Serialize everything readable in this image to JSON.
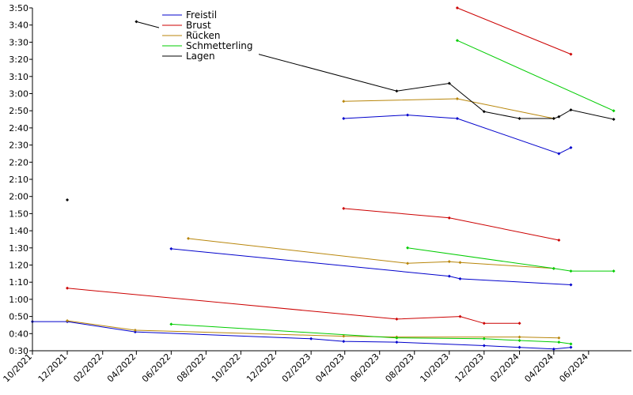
{
  "chart_data": {
    "type": "line",
    "title": "",
    "xlabel": "",
    "ylabel": "",
    "x_range": [
      "2021-10-01",
      "2024-08-15"
    ],
    "y_range_seconds": [
      30,
      230
    ],
    "y_ticks": [
      "0:30",
      "0:40",
      "0:50",
      "1:00",
      "1:10",
      "1:20",
      "1:30",
      "1:40",
      "1:50",
      "2:00",
      "2:10",
      "2:20",
      "2:30",
      "2:40",
      "2:50",
      "3:00",
      "3:10",
      "3:20",
      "3:30",
      "3:40",
      "3:50"
    ],
    "x_ticks": [
      {
        "date": "2021-10-01",
        "label": "10/2021"
      },
      {
        "date": "2021-12-01",
        "label": "12/2021"
      },
      {
        "date": "2022-02-01",
        "label": "02/2022"
      },
      {
        "date": "2022-04-01",
        "label": "04/2022"
      },
      {
        "date": "2022-06-01",
        "label": "06/2022"
      },
      {
        "date": "2022-08-01",
        "label": "08/2022"
      },
      {
        "date": "2022-10-01",
        "label": "10/2022"
      },
      {
        "date": "2022-12-01",
        "label": "12/2022"
      },
      {
        "date": "2023-02-01",
        "label": "02/2023"
      },
      {
        "date": "2023-04-01",
        "label": "04/2023"
      },
      {
        "date": "2023-06-01",
        "label": "06/2023"
      },
      {
        "date": "2023-08-01",
        "label": "08/2023"
      },
      {
        "date": "2023-10-01",
        "label": "10/2023"
      },
      {
        "date": "2023-12-01",
        "label": "12/2023"
      },
      {
        "date": "2024-02-01",
        "label": "02/2024"
      },
      {
        "date": "2024-04-01",
        "label": "04/2024"
      },
      {
        "date": "2024-06-01",
        "label": "06/2024"
      }
    ],
    "grid": false,
    "legend_position": "top-left",
    "series": [
      {
        "name": "Freistil",
        "color": "#0000cc",
        "lines": [
          [
            [
              "2021-10-01",
              "0:47"
            ],
            [
              "2021-12-01",
              "0:47"
            ],
            [
              "2022-03-30",
              "0:41"
            ],
            [
              "2023-02-01",
              "0:37"
            ],
            [
              "2023-03-30",
              "0:35.5"
            ],
            [
              "2023-07-01",
              "0:35"
            ],
            [
              "2023-12-01",
              "0:33"
            ],
            [
              "2024-02-01",
              "0:32"
            ],
            [
              "2024-04-01",
              "0:31"
            ],
            [
              "2024-05-01",
              "0:32"
            ]
          ],
          [
            [
              "2022-06-01",
              "1:29.5"
            ],
            [
              "2023-10-01",
              "1:13.5"
            ],
            [
              "2023-10-20",
              "1:12"
            ],
            [
              "2024-05-01",
              "1:08.5"
            ]
          ],
          [
            [
              "2023-03-30",
              "2:45.5"
            ],
            [
              "2023-07-20",
              "2:47.5"
            ],
            [
              "2023-10-15",
              "2:45.5"
            ],
            [
              "2024-04-10",
              "2:25"
            ],
            [
              "2024-05-01",
              "2:28.5"
            ]
          ]
        ]
      },
      {
        "name": "Brust",
        "color": "#cc0000",
        "lines": [
          [
            [
              "2021-12-01",
              "1:06.5"
            ],
            [
              "2023-07-01",
              "0:48.5"
            ],
            [
              "2023-10-20",
              "0:50"
            ],
            [
              "2023-12-01",
              "0:46"
            ],
            [
              "2024-02-01",
              "0:46"
            ]
          ],
          [
            [
              "2023-03-30",
              "1:53"
            ],
            [
              "2023-10-01",
              "1:47.5"
            ],
            [
              "2024-04-10",
              "1:34.5"
            ]
          ],
          [
            [
              "2023-10-15",
              "3:50"
            ],
            [
              "2024-05-01",
              "3:23"
            ]
          ]
        ]
      },
      {
        "name": "Rücken",
        "color": "#b8860b",
        "lines": [
          [
            [
              "2021-12-01",
              "0:47.5"
            ],
            [
              "2022-03-30",
              "0:42"
            ],
            [
              "2023-03-30",
              "0:38.5"
            ],
            [
              "2023-07-01",
              "0:38"
            ],
            [
              "2024-02-01",
              "0:38"
            ],
            [
              "2024-04-10",
              "0:37.5"
            ]
          ],
          [
            [
              "2022-07-01",
              "1:35.5"
            ],
            [
              "2023-07-20",
              "1:21"
            ],
            [
              "2023-10-01",
              "1:22"
            ],
            [
              "2023-10-20",
              "1:21.5"
            ],
            [
              "2024-04-01",
              "1:18"
            ]
          ],
          [
            [
              "2023-03-30",
              "2:55.5"
            ],
            [
              "2023-10-15",
              "2:57"
            ],
            [
              "2024-04-01",
              "2:45.5"
            ]
          ]
        ]
      },
      {
        "name": "Schmetterling",
        "color": "#00cc00",
        "lines": [
          [
            [
              "2022-06-01",
              "0:45.5"
            ],
            [
              "2023-07-01",
              "0:37.5"
            ],
            [
              "2023-12-01",
              "0:37"
            ],
            [
              "2024-02-01",
              "0:36"
            ],
            [
              "2024-04-10",
              "0:35"
            ],
            [
              "2024-05-01",
              "0:34"
            ]
          ],
          [
            [
              "2023-07-20",
              "1:30"
            ],
            [
              "2024-04-01",
              "1:18"
            ],
            [
              "2024-05-01",
              "1:16.5"
            ],
            [
              "2024-07-15",
              "1:16.5"
            ]
          ],
          [
            [
              "2023-10-15",
              "3:31"
            ],
            [
              "2024-07-15",
              "2:50"
            ]
          ]
        ]
      },
      {
        "name": "Lagen",
        "color": "#000000",
        "lines": [
          [
            [
              "2021-12-01",
              "1:58"
            ]
          ],
          [
            [
              "2022-04-01",
              "3:42"
            ],
            [
              "2023-07-01",
              "3:01.5"
            ],
            [
              "2023-10-01",
              "3:06"
            ],
            [
              "2023-12-01",
              "2:49.5"
            ],
            [
              "2024-02-01",
              "2:45.5"
            ],
            [
              "2024-04-01",
              "2:45.5"
            ],
            [
              "2024-04-10",
              "2:46.5"
            ],
            [
              "2024-05-01",
              "2:50.5"
            ],
            [
              "2024-07-15",
              "2:45"
            ]
          ]
        ]
      }
    ]
  }
}
